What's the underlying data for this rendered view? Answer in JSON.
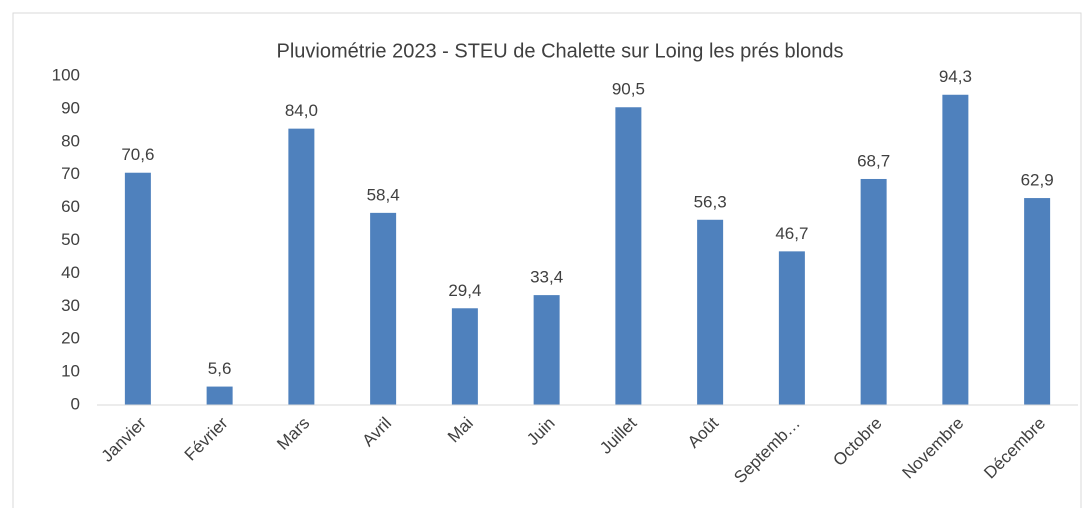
{
  "chart_data": {
    "type": "bar",
    "title": "Pluviométrie 2023 - STEU de Chalette sur Loing les prés blonds",
    "categories": [
      "Janvier",
      "Février",
      "Mars",
      "Avril",
      "Mai",
      "Juin",
      "Juillet",
      "Août",
      "Septemb…",
      "Octobre",
      "Novembre",
      "Décembre"
    ],
    "values": [
      70.6,
      5.6,
      84.0,
      58.4,
      29.4,
      33.4,
      90.5,
      56.3,
      46.7,
      68.7,
      94.3,
      62.9
    ],
    "value_labels": [
      "70,6",
      "5,6",
      "84,0",
      "58,4",
      "29,4",
      "33,4",
      "90,5",
      "56,3",
      "46,7",
      "68,7",
      "94,3",
      "62,9"
    ],
    "color": "#4f81bd",
    "ylim": [
      0,
      100
    ],
    "yticks": [
      0,
      10,
      20,
      30,
      40,
      50,
      60,
      70,
      80,
      90,
      100
    ],
    "grid": false
  }
}
